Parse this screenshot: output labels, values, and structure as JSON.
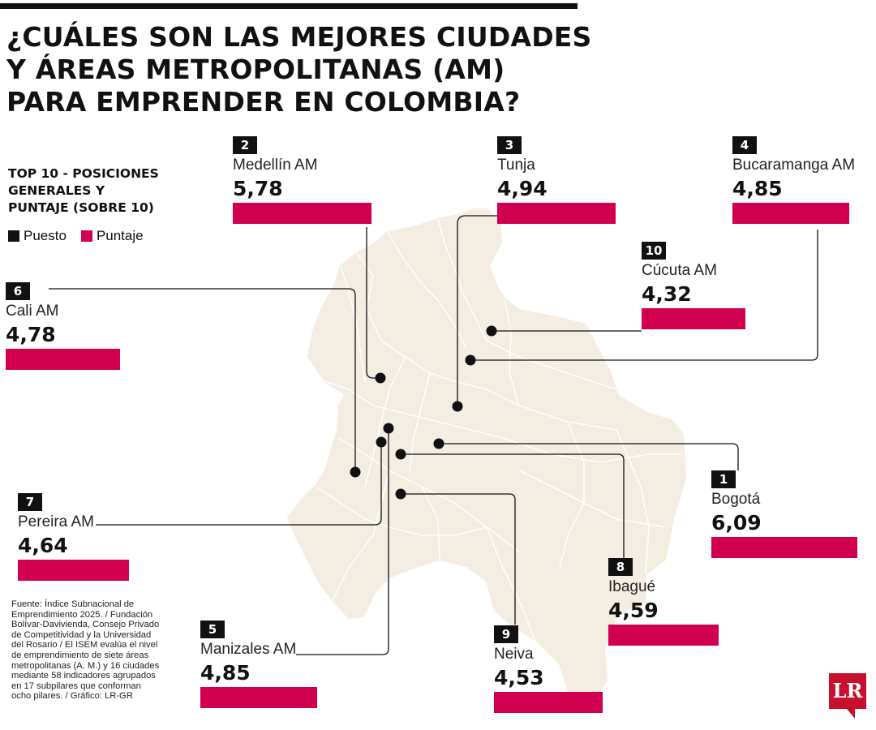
{
  "title": {
    "line1": "¿CUÁLES SON LAS MEJORES CIUDADES",
    "line2": "Y ÁREAS METROPOLITANAS (AM)",
    "line3": "PARA EMPRENDER EN COLOMBIA?"
  },
  "legend": {
    "heading_line1": "TOP 10 - POSICIONES",
    "heading_line2": "GENERALES Y",
    "heading_line3": "PUNTAJE (SOBRE 10)",
    "rank_label": "Puesto",
    "score_label": "Puntaje"
  },
  "colors": {
    "bar": "#d1004f",
    "badge": "#111111",
    "map_fill": "#f3ede2",
    "map_border": "#ffffff",
    "logo": "#c8102e"
  },
  "cities": [
    {
      "rank": "1",
      "name": "Bogotá",
      "score": "6,09",
      "score_value": 6.09
    },
    {
      "rank": "2",
      "name": "Medellín AM",
      "score": "5,78",
      "score_value": 5.78
    },
    {
      "rank": "3",
      "name": "Tunja",
      "score": "4,94",
      "score_value": 4.94
    },
    {
      "rank": "4",
      "name": "Bucaramanga AM",
      "score": "4,85",
      "score_value": 4.85
    },
    {
      "rank": "5",
      "name": "Manizales AM",
      "score": "4,85",
      "score_value": 4.85
    },
    {
      "rank": "6",
      "name": "Cali AM",
      "score": "4,78",
      "score_value": 4.78
    },
    {
      "rank": "7",
      "name": "Pereira AM",
      "score": "4,64",
      "score_value": 4.64
    },
    {
      "rank": "8",
      "name": "Ibagué",
      "score": "4,59",
      "score_value": 4.59
    },
    {
      "rank": "9",
      "name": "Neiva",
      "score": "4,53",
      "score_value": 4.53
    },
    {
      "rank": "10",
      "name": "Cúcuta AM",
      "score": "4,32",
      "score_value": 4.32
    }
  ],
  "source": {
    "line1": "Fuente: Índice Subnacional de",
    "line2": "Emprendimiento 2025.  / Fundación",
    "line3": "Bolívar-Davivienda, Consejo Privado",
    "line4": "de Competitividad y la Universidad",
    "line5": "del Rosario / El ISEM evalúa el nivel",
    "line6": "de emprendimiento de siete áreas",
    "line7": "metropolitanas (A. M.) y 16 ciudades",
    "line8": "mediante 58 indicadores agrupados",
    "line9": "en 17 subpilares que conforman",
    "line10": "ocho pilares. / Gráfico: LR-GR"
  },
  "logo": {
    "text": "LR"
  }
}
